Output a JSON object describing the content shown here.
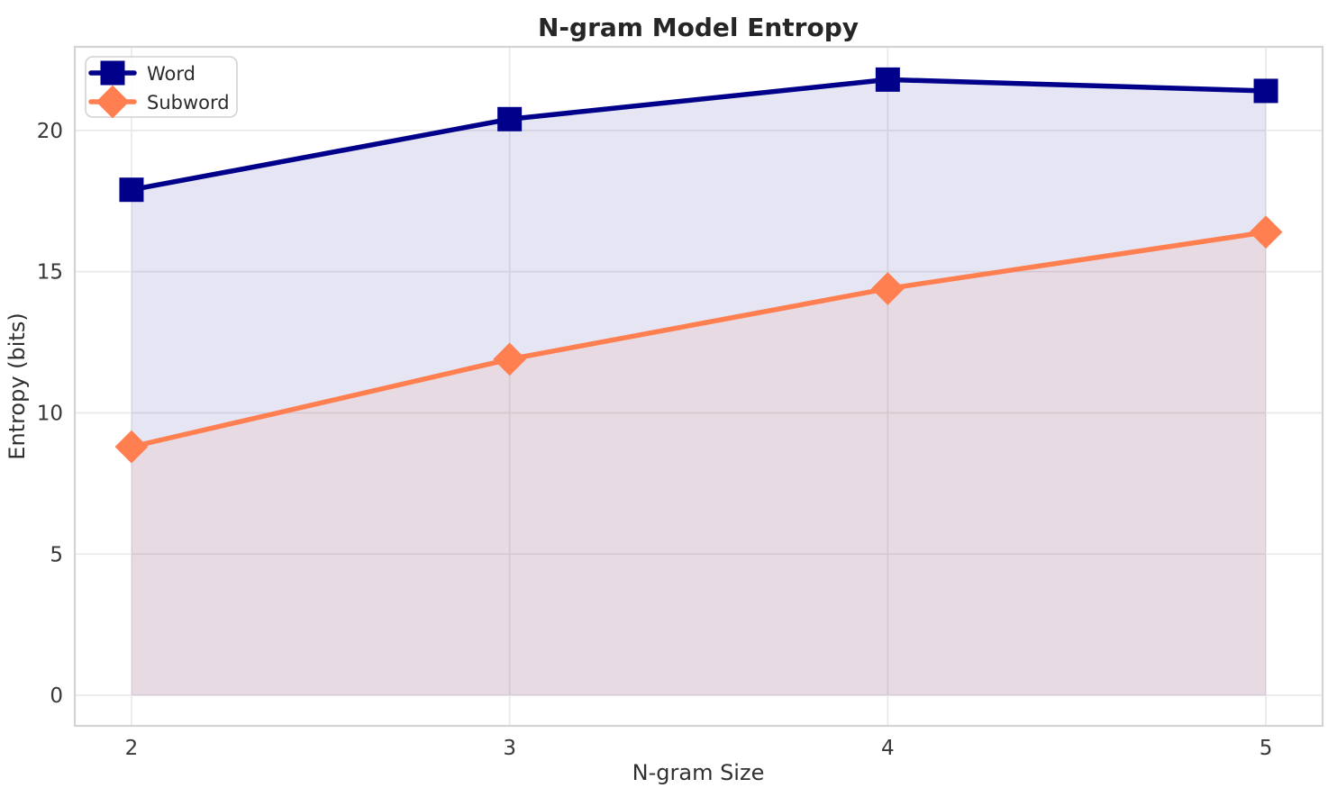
{
  "chart_data": {
    "type": "line",
    "title": "N-gram Model Entropy",
    "xlabel": "N-gram Size",
    "ylabel": "Entropy (bits)",
    "x": [
      2,
      3,
      4,
      5
    ],
    "series": [
      {
        "name": "Word",
        "values": [
          17.9,
          20.4,
          21.8,
          21.4
        ],
        "color": "#00008b",
        "marker": "square",
        "fill_opacity": 0.1
      },
      {
        "name": "Subword",
        "values": [
          8.8,
          11.9,
          14.4,
          16.4
        ],
        "color": "#ff7f50",
        "marker": "diamond",
        "fill_opacity": 0.1
      }
    ],
    "xticks": [
      2,
      3,
      4,
      5
    ],
    "yticks": [
      0,
      5,
      10,
      15,
      20
    ],
    "xtick_labels": [
      "2",
      "3",
      "4",
      "5"
    ],
    "ytick_labels": [
      "0",
      "5",
      "10",
      "15",
      "20"
    ],
    "xlim": [
      1.85,
      5.15
    ],
    "ylim": [
      -1.08,
      22.96
    ],
    "grid": true,
    "area_fill": true,
    "legend_position": "upper-left",
    "legend_entries": [
      "Word",
      "Subword"
    ]
  },
  "style_colors": {
    "background": "#ffffff",
    "grid_color": "#e9e9e9",
    "spine_color": "#d4d4d4",
    "legend_border": "#d2d2d2",
    "legend_background": "#ffffff"
  }
}
